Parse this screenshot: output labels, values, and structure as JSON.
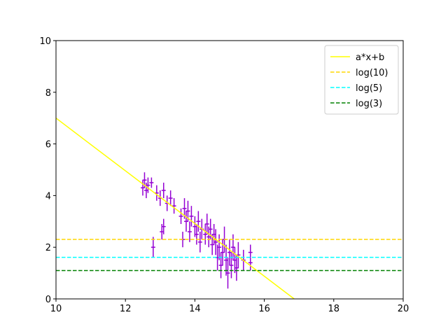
{
  "chart_data": {
    "type": "errorbar",
    "xlim": [
      10,
      20
    ],
    "ylim": [
      0,
      10
    ],
    "xticks": [
      10,
      12,
      14,
      16,
      18,
      20
    ],
    "yticks": [
      0,
      2,
      4,
      6,
      8,
      10
    ],
    "legend": "upper right",
    "series": [
      {
        "type": "errorbar",
        "color": "#9400d3",
        "xerr": 0.06,
        "x": [
          12.5,
          12.55,
          12.6,
          12.65,
          12.75,
          12.8,
          12.9,
          13.0,
          13.05,
          13.1,
          13.1,
          13.2,
          13.3,
          13.4,
          13.6,
          13.65,
          13.7,
          13.75,
          13.8,
          13.85,
          13.9,
          14.0,
          14.05,
          14.1,
          14.15,
          14.2,
          14.3,
          14.35,
          14.4,
          14.45,
          14.5,
          14.55,
          14.6,
          14.65,
          14.7,
          14.75,
          14.8,
          14.85,
          14.9,
          14.95,
          15.0,
          15.05,
          15.1,
          15.15,
          15.2,
          15.25,
          15.4,
          15.6,
          15.6
        ],
        "values": [
          4.3,
          4.6,
          4.2,
          4.4,
          4.5,
          2.0,
          4.1,
          3.9,
          2.6,
          2.8,
          4.2,
          3.7,
          3.9,
          3.6,
          3.2,
          2.3,
          3.5,
          3.0,
          3.4,
          2.6,
          3.2,
          2.8,
          2.5,
          3.0,
          2.2,
          2.7,
          2.5,
          2.9,
          2.4,
          2.7,
          2.1,
          2.5,
          2.2,
          1.6,
          2.0,
          1.3,
          1.8,
          2.3,
          1.5,
          1.0,
          1.8,
          1.3,
          2.0,
          1.5,
          1.2,
          1.7,
          1.5,
          1.8,
          1.4
        ],
        "yerr": [
          0.3,
          0.3,
          0.3,
          0.3,
          0.2,
          0.4,
          0.3,
          0.3,
          0.3,
          0.3,
          0.3,
          0.3,
          0.3,
          0.3,
          0.3,
          0.3,
          0.4,
          0.4,
          0.4,
          0.4,
          0.4,
          0.4,
          0.4,
          0.4,
          0.4,
          0.4,
          0.4,
          0.4,
          0.4,
          0.4,
          0.4,
          0.4,
          0.5,
          0.5,
          0.5,
          0.5,
          0.5,
          0.5,
          0.6,
          0.6,
          0.5,
          0.5,
          0.5,
          0.5,
          0.5,
          0.5,
          0.4,
          0.3,
          0.3
        ]
      },
      {
        "type": "line",
        "name": "a*x+b",
        "color": "#ffff00",
        "dash": false,
        "x": [
          10,
          16.86
        ],
        "values": [
          7.0,
          0
        ]
      },
      {
        "type": "hline",
        "name": "log(10)",
        "color": "#ffd700",
        "dash": true,
        "values": [
          2.303
        ]
      },
      {
        "type": "hline",
        "name": "log(5)",
        "color": "#00ffff",
        "dash": true,
        "values": [
          1.609
        ]
      },
      {
        "type": "hline",
        "name": "log(3)",
        "color": "#008000",
        "dash": true,
        "values": [
          1.099
        ]
      }
    ]
  }
}
